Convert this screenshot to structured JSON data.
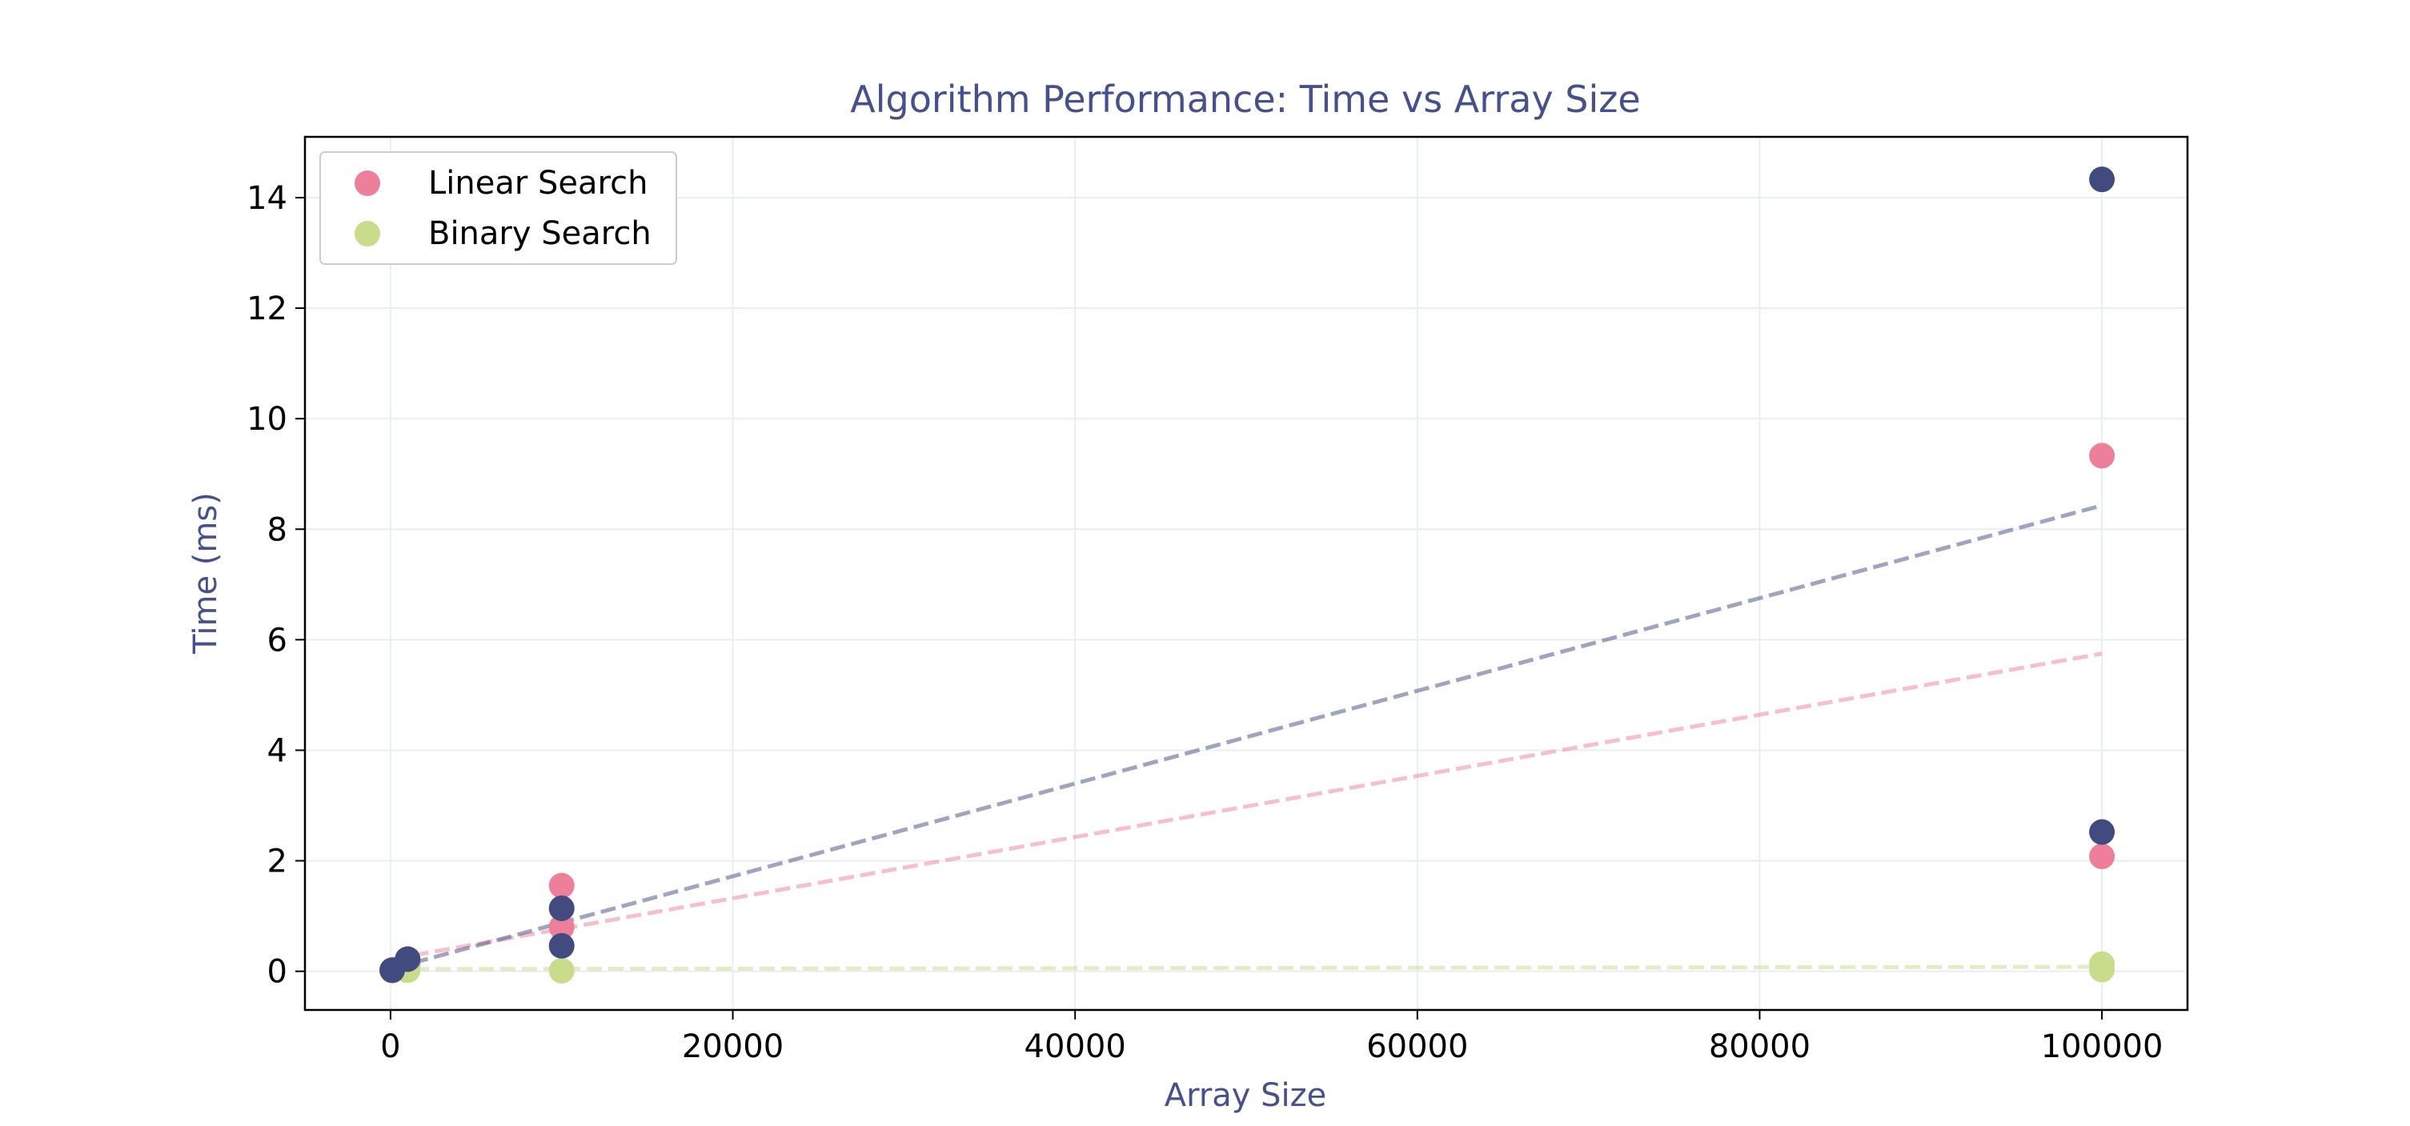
{
  "chart_data": {
    "type": "scatter",
    "title": "Algorithm Performance: Time vs Array Size",
    "xlabel": "Array Size",
    "ylabel": "Time (ms)",
    "xlim": [
      -5000,
      105000
    ],
    "ylim": [
      -0.7,
      15.1
    ],
    "xticks": [
      0,
      20000,
      40000,
      60000,
      80000,
      100000
    ],
    "yticks": [
      0,
      2,
      4,
      6,
      8,
      10,
      12,
      14
    ],
    "grid": true,
    "legend_position": "top-left",
    "colors": {
      "title": "#46508a",
      "axis_label": "#46508a",
      "linear": "#ed7f9a",
      "binary": "#c8dc8c",
      "third": "#414b7f",
      "grid": "#e8eef5"
    },
    "series": [
      {
        "name": "Linear Search",
        "color": "#ed7f9a",
        "points": [
          {
            "x": 100,
            "y": 0.02
          },
          {
            "x": 1000,
            "y": 0.12
          },
          {
            "x": 10000,
            "y": 1.55
          },
          {
            "x": 10000,
            "y": 0.8
          },
          {
            "x": 100000,
            "y": 9.33
          },
          {
            "x": 100000,
            "y": 2.08
          }
        ],
        "trend": [
          [
            100,
            0.22
          ],
          [
            100000,
            5.75
          ]
        ]
      },
      {
        "name": "Binary Search",
        "color": "#c8dc8c",
        "points": [
          {
            "x": 100,
            "y": 0.01
          },
          {
            "x": 1000,
            "y": 0.02
          },
          {
            "x": 10000,
            "y": 0.01
          },
          {
            "x": 100000,
            "y": 0.13
          },
          {
            "x": 100000,
            "y": 0.03
          }
        ],
        "trend": [
          [
            100,
            0.04
          ],
          [
            100000,
            0.08
          ]
        ]
      },
      {
        "color": "#414b7f",
        "points": [
          {
            "x": 100,
            "y": 0.02
          },
          {
            "x": 1000,
            "y": 0.22
          },
          {
            "x": 10000,
            "y": 1.14
          },
          {
            "x": 10000,
            "y": 0.46
          },
          {
            "x": 100000,
            "y": 14.33
          },
          {
            "x": 100000,
            "y": 2.52
          }
        ],
        "trend": [
          [
            100,
            0.05
          ],
          [
            100000,
            8.43
          ]
        ]
      }
    ]
  }
}
